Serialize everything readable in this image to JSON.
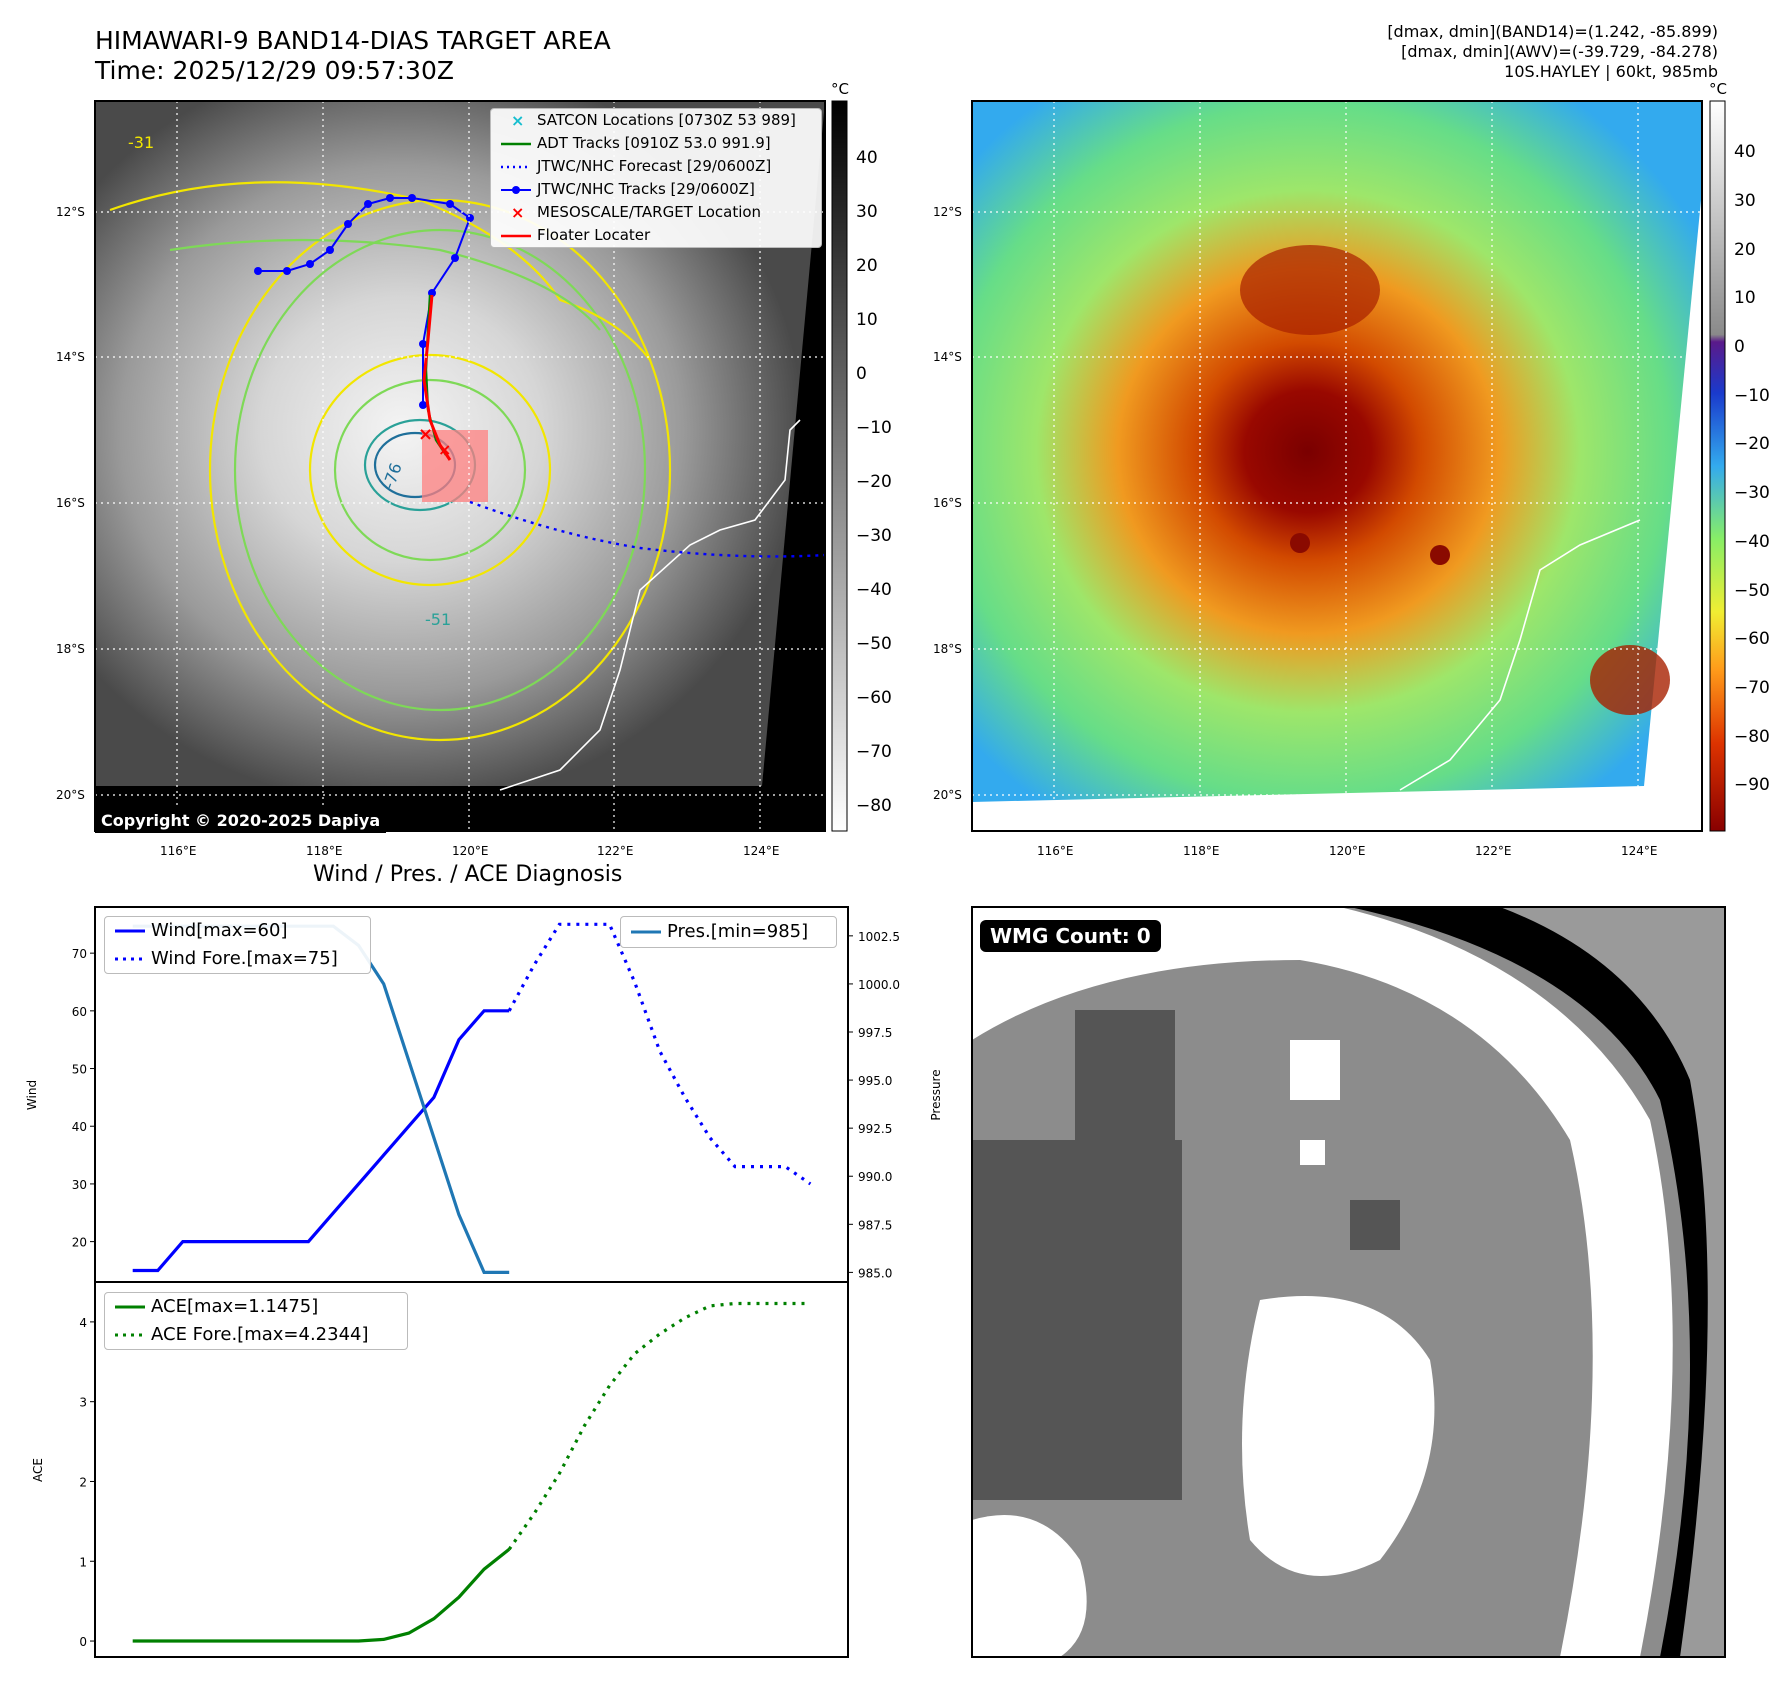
{
  "header": {
    "title": "HIMAWARI-9 BAND14-DIAS TARGET AREA",
    "time": "Time: 2025/12/29 09:57:30Z",
    "stats_band14": "[dmax, dmin](BAND14)=(1.242, -85.899)",
    "stats_awv": "[dmax, dmin](AWV)=(-39.729, -84.278)",
    "storm": "10S.HAYLEY | 60kt, 985mb"
  },
  "maps": {
    "lat_labels": [
      "12°S",
      "14°S",
      "16°S",
      "18°S",
      "20°S"
    ],
    "lon_labels": [
      "116°E",
      "118°E",
      "120°E",
      "122°E",
      "124°E"
    ],
    "copyright": "Copyright © 2020-2025 Dapiya",
    "contour_labels": [
      "-31",
      "-76",
      "-51"
    ],
    "legend": [
      {
        "label": "SATCON Locations [0730Z 53 989]",
        "color": "#17becf",
        "style": "x"
      },
      {
        "label": "ADT Tracks [0910Z 53.0 991.9]",
        "color": "#008000",
        "style": "line"
      },
      {
        "label": "JTWC/NHC Forecast [29/0600Z]",
        "color": "#0000ff",
        "style": "dotted"
      },
      {
        "label": "JTWC/NHC Tracks [29/0600Z]",
        "color": "#0000ff",
        "style": "line-dot"
      },
      {
        "label": "MESOSCALE/TARGET Location",
        "color": "#ff0000",
        "style": "x"
      },
      {
        "label": "Floater Locater",
        "color": "#ff0000",
        "style": "line"
      }
    ]
  },
  "colorbars": {
    "unit": "°C",
    "gray_ticks": [
      "40",
      "30",
      "20",
      "10",
      "0",
      "−10",
      "−20",
      "−30",
      "−40",
      "−50",
      "−60",
      "−70",
      "−80"
    ],
    "color_ticks": [
      "40",
      "30",
      "20",
      "10",
      "0",
      "−10",
      "−20",
      "−30",
      "−40",
      "−50",
      "−60",
      "−70",
      "−80",
      "−90"
    ]
  },
  "diagnosis": {
    "title": "Wind / Pres. / ACE Diagnosis",
    "wind_ylabel": "Wind",
    "pres_ylabel": "Pressure",
    "ace_ylabel": "ACE",
    "wmg": "WMG Count: 0"
  },
  "chart_data": [
    {
      "type": "line",
      "title": "",
      "ylabel": "Wind",
      "ylim": [
        13,
        78
      ],
      "yticks": [
        "70",
        "60",
        "50",
        "40",
        "30",
        "20"
      ],
      "series": [
        {
          "name": "Wind[max=60]",
          "color": "#0000ff",
          "style": "solid",
          "x": [
            0,
            1,
            2,
            3,
            4,
            5,
            6,
            7,
            8,
            9,
            10,
            11,
            12,
            13,
            14,
            15
          ],
          "values": [
            15,
            15,
            20,
            20,
            20,
            20,
            20,
            20,
            25,
            30,
            35,
            40,
            45,
            55,
            60,
            60
          ]
        },
        {
          "name": "Wind Fore.[max=75]",
          "color": "#0000ff",
          "style": "dotted",
          "x": [
            15,
            16,
            17,
            18,
            19,
            20,
            21,
            22,
            23,
            24,
            25,
            26,
            27
          ],
          "values": [
            60,
            68,
            75,
            75,
            75,
            65,
            53,
            45,
            38,
            33,
            33,
            33,
            30
          ]
        }
      ]
    },
    {
      "type": "line",
      "title": "",
      "ylabel": "Pressure",
      "ylim": [
        984.5,
        1004
      ],
      "yticks": [
        "1002.5",
        "1000.0",
        "997.5",
        "995.0",
        "992.5",
        "990.0",
        "987.5",
        "985.0"
      ],
      "series": [
        {
          "name": "Pres.[min=985]",
          "color": "#1f77b4",
          "style": "solid",
          "x": [
            0,
            1,
            2,
            3,
            4,
            5,
            6,
            7,
            8,
            9,
            10,
            11,
            12,
            13,
            14,
            15
          ],
          "values": [
            1003,
            1003,
            1003,
            1003,
            1003,
            1003,
            1003,
            1003,
            1003,
            1002,
            1000,
            996,
            992,
            988,
            985,
            985
          ]
        }
      ]
    },
    {
      "type": "line",
      "title": "",
      "ylabel": "ACE",
      "ylim": [
        -0.2,
        4.5
      ],
      "yticks": [
        "4",
        "3",
        "2",
        "1",
        "0"
      ],
      "series": [
        {
          "name": "ACE[max=1.1475]",
          "color": "#008000",
          "style": "solid",
          "x": [
            0,
            1,
            2,
            3,
            4,
            5,
            6,
            7,
            8,
            9,
            10,
            11,
            12,
            13,
            14,
            15
          ],
          "values": [
            0,
            0,
            0,
            0,
            0,
            0,
            0,
            0,
            0,
            0,
            0.02,
            0.1,
            0.28,
            0.55,
            0.9,
            1.15
          ]
        },
        {
          "name": "ACE Fore.[max=4.2344]",
          "color": "#008000",
          "style": "dotted",
          "x": [
            15,
            16,
            17,
            18,
            19,
            20,
            21,
            22,
            23,
            24,
            25,
            26,
            27
          ],
          "values": [
            1.15,
            1.6,
            2.1,
            2.7,
            3.2,
            3.6,
            3.85,
            4.05,
            4.2,
            4.23,
            4.23,
            4.23,
            4.23
          ]
        }
      ]
    }
  ]
}
